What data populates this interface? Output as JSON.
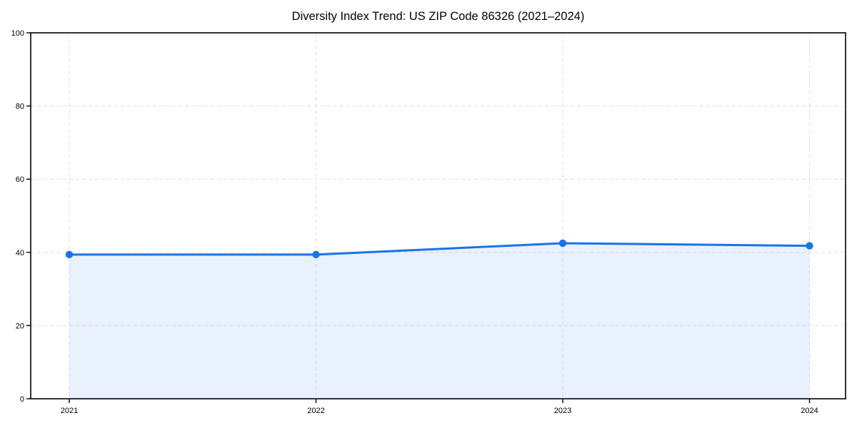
{
  "chart_data": {
    "type": "area",
    "title": "Diversity Index Trend: US ZIP Code 86326 (2021–2024)",
    "categories": [
      "2021",
      "2022",
      "2023",
      "2024"
    ],
    "series": [
      {
        "name": "Diversity Index",
        "values": [
          39.4,
          39.4,
          42.5,
          41.8
        ]
      }
    ],
    "xlabel": "",
    "ylabel": "",
    "ylim": [
      0,
      100
    ],
    "yticks": [
      0,
      20,
      40,
      60,
      80,
      100
    ],
    "grid": "dashed",
    "legend": "none",
    "colors": {
      "line": "#1a73e8",
      "fill_rgba": "rgba(26,115,232,0.10)",
      "grid": "#e3e3e3",
      "axis": "#000000",
      "text": "#000000",
      "background": "#ffffff"
    }
  }
}
